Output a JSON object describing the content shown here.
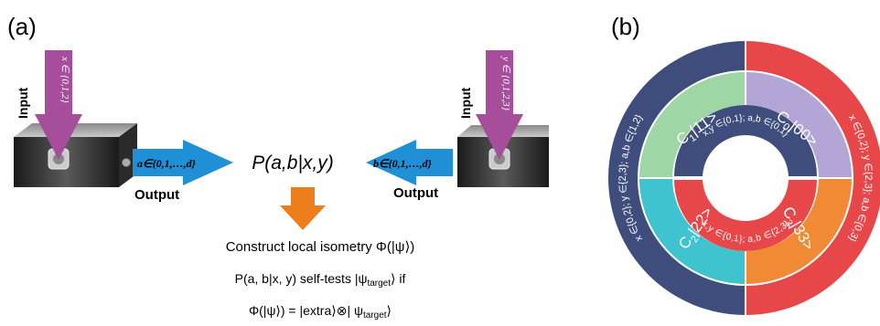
{
  "panel_a": {
    "label": "(a)",
    "left_box": {
      "input_label": "Input",
      "input_set": "x ∈ {0,1,2}",
      "output_label": "Output",
      "output_set": "a∈{0,1,…,d}"
    },
    "right_box": {
      "input_label": "Input",
      "input_set": "y ∈ {0,1,2,3}",
      "output_label": "Output",
      "output_set": "b∈{0,1,…,d}"
    },
    "probability": "P(a,b|x,y)",
    "lines": [
      [
        "Construct local isometry Φ(|ψ⟩)"
      ],
      [
        "P(a, b|x, y) self-tests |ψ",
        "target",
        "⟩ if"
      ],
      [
        "Φ(|ψ⟩) = |extra⟩⊗| ψ",
        "target",
        "⟩"
      ]
    ]
  },
  "panel_b": {
    "label": "(b)",
    "quadrants": [
      [
        "C",
        "1",
        "|11>"
      ],
      [
        "C",
        "0",
        "|00>"
      ],
      [
        "C",
        "2",
        "|22>"
      ],
      [
        "C",
        "3",
        "|33>"
      ]
    ],
    "inner_top": "x,y ∈{0,1}; a,b ∈{0,1}",
    "inner_bottom": "x,y ∈{0,1}; a,b ∈{2,3}",
    "outer_left": "x ∈{0,2}; y ∈{2,3}; a,b ∈{1,2}",
    "outer_right": "x ∈{0,2}; y ∈{2,3}; a,b ∈{0,3}"
  }
}
